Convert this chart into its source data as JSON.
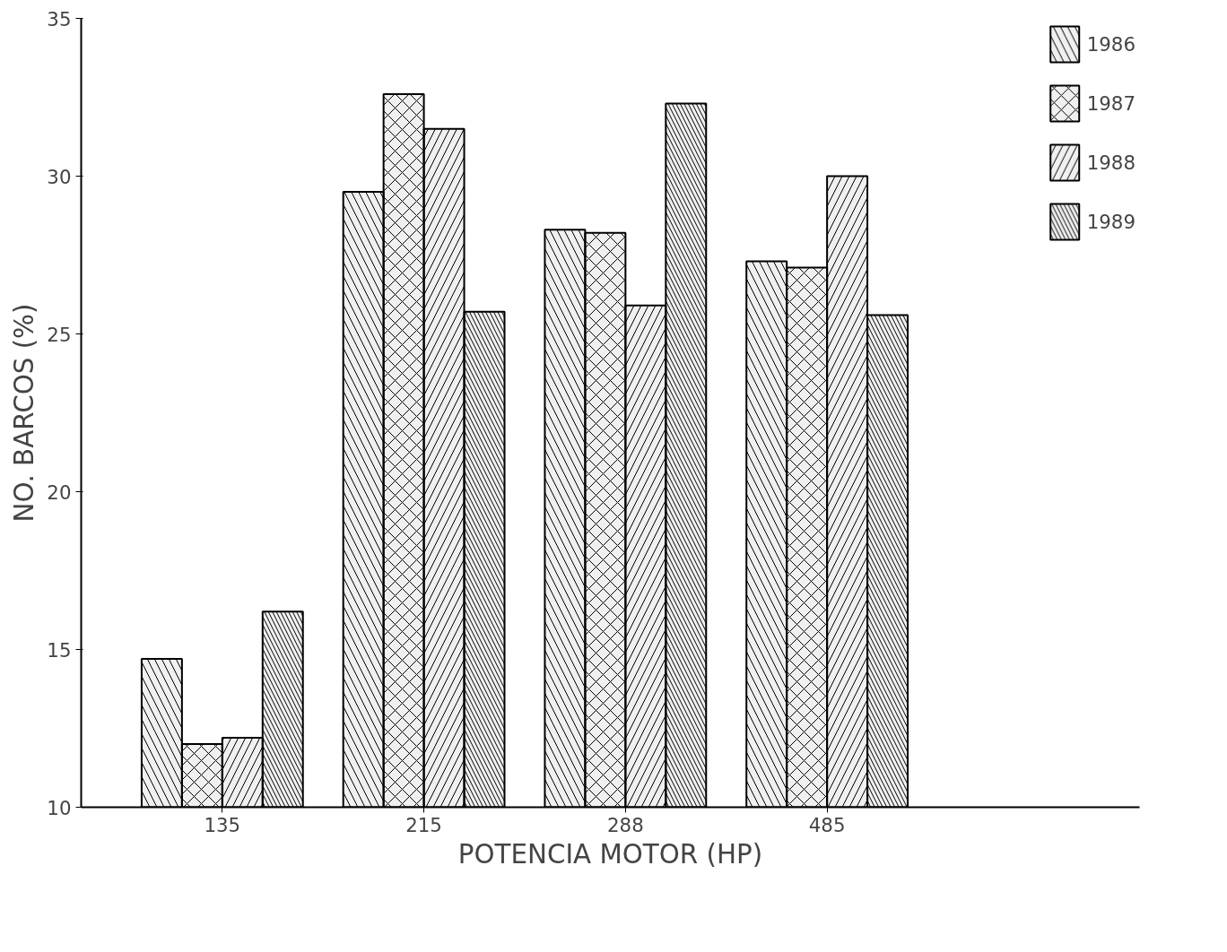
{
  "chart_data": {
    "type": "bar",
    "xlabel": "POTENCIA MOTOR (HP)",
    "ylabel": "NO. BARCOS (%)",
    "categories": [
      "135",
      "215",
      "288",
      "485"
    ],
    "series": [
      {
        "name": "1986",
        "color": "#000000",
        "values": [
          14.7,
          29.5,
          28.3,
          27.3
        ]
      },
      {
        "name": "1987",
        "color": "#000000",
        "values": [
          12.0,
          32.6,
          28.2,
          27.1
        ]
      },
      {
        "name": "1988",
        "color": "#000000",
        "values": [
          12.2,
          31.5,
          25.9,
          30.0
        ]
      },
      {
        "name": "1989",
        "color": "#000000",
        "values": [
          16.2,
          25.7,
          32.3,
          25.6
        ]
      }
    ],
    "ylim": [
      10,
      35
    ],
    "yticks": [
      10,
      15,
      20,
      25,
      30,
      35
    ],
    "grid": false,
    "legend": "top right"
  }
}
